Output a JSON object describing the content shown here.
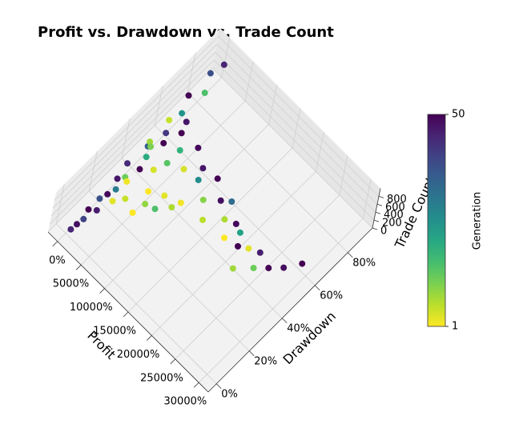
{
  "chart_data": {
    "type": "scatter3d",
    "title": "Profit vs. Drawdown vs. Trade Count",
    "x_label": "Profit",
    "y_label": "Drawdown",
    "z_label": "Trade Count",
    "colorbar_label": "Generation",
    "colormap": "viridis_r",
    "clim": [
      1,
      50
    ],
    "colorbar_ticks": [
      1,
      50
    ],
    "xlim": [
      -2000,
      32000
    ],
    "ylim": [
      -5,
      95
    ],
    "zlim": [
      0,
      1000
    ],
    "xticks": [
      {
        "value": 0,
        "label": "0%"
      },
      {
        "value": 5000,
        "label": "5000%"
      },
      {
        "value": 10000,
        "label": "10000%"
      },
      {
        "value": 15000,
        "label": "15000%"
      },
      {
        "value": 20000,
        "label": "20000%"
      },
      {
        "value": 25000,
        "label": "25000%"
      },
      {
        "value": 30000,
        "label": "30000%"
      }
    ],
    "yticks": [
      {
        "value": 0,
        "label": "0%"
      },
      {
        "value": 20,
        "label": "20%"
      },
      {
        "value": 40,
        "label": "40%"
      },
      {
        "value": 60,
        "label": "60%"
      },
      {
        "value": 80,
        "label": "80%"
      }
    ],
    "zticks": [
      0,
      200,
      400,
      600,
      800
    ],
    "grid": true,
    "x": [
      300,
      500,
      800,
      400,
      1200,
      600,
      900,
      1500,
      700,
      1100,
      300,
      2000,
      1800,
      1000,
      500,
      2500,
      1400,
      800,
      3000,
      1200,
      600,
      2200,
      900,
      1600,
      3000,
      4500,
      6000,
      7000,
      8500,
      9500,
      11000,
      12000,
      13500,
      15000,
      16000,
      17500,
      19000,
      20000,
      21500,
      23000,
      24000,
      25500,
      27000,
      28500,
      10000,
      14000,
      18000,
      22000,
      5000,
      8000,
      2000,
      3500,
      5000,
      6500,
      4000,
      7500,
      2500,
      9000,
      1500,
      6000
    ],
    "y": [
      2,
      5,
      8,
      12,
      15,
      18,
      22,
      25,
      28,
      32,
      35,
      38,
      42,
      45,
      48,
      50,
      55,
      58,
      62,
      65,
      70,
      75,
      82,
      88,
      60,
      55,
      62,
      50,
      58,
      52,
      60,
      48,
      55,
      57,
      50,
      53,
      51,
      47,
      49,
      52,
      45,
      50,
      55,
      62,
      40,
      42,
      44,
      38,
      45,
      35,
      30,
      25,
      35,
      28,
      40,
      32,
      20,
      38,
      45,
      22
    ],
    "z": [
      50,
      80,
      120,
      150,
      100,
      200,
      180,
      250,
      300,
      220,
      350,
      280,
      400,
      450,
      380,
      500,
      420,
      550,
      600,
      480,
      650,
      700,
      750,
      800,
      400,
      350,
      300,
      380,
      250,
      320,
      200,
      280,
      150,
      220,
      180,
      120,
      160,
      100,
      140,
      90,
      110,
      80,
      60,
      50,
      300,
      260,
      200,
      150,
      500,
      450,
      300,
      250,
      200,
      350,
      420,
      180,
      280,
      150,
      500,
      320
    ],
    "generation": [
      45,
      48,
      40,
      50,
      46,
      38,
      49,
      30,
      47,
      12,
      44,
      50,
      20,
      35,
      8,
      50,
      42,
      5,
      47,
      25,
      50,
      15,
      38,
      45,
      50,
      18,
      49,
      4,
      47,
      26,
      50,
      10,
      48,
      33,
      7,
      49,
      22,
      50,
      3,
      46,
      12,
      50,
      48,
      50,
      2,
      6,
      1,
      8,
      14,
      3,
      2,
      5,
      1,
      9,
      4,
      15,
      3,
      7,
      11,
      1
    ]
  }
}
